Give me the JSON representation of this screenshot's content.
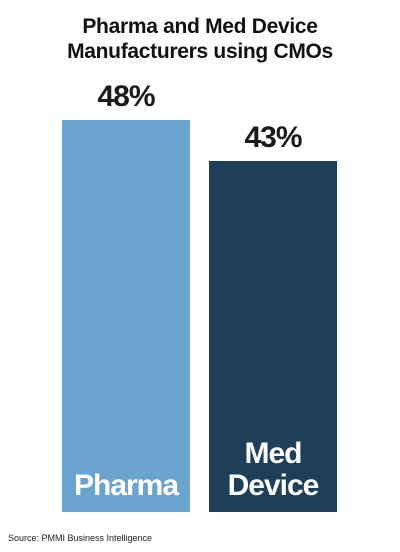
{
  "chart_data": {
    "type": "bar",
    "title": "Pharma and Med Device Manufacturers using CMOs",
    "categories": [
      "Pharma",
      "Med Device"
    ],
    "values": [
      48,
      43
    ],
    "value_labels": [
      "48%",
      "43%"
    ],
    "colors": [
      "#6ba3cf",
      "#1e3f5a"
    ],
    "source": "Source: PMMI Business Intelligence"
  }
}
